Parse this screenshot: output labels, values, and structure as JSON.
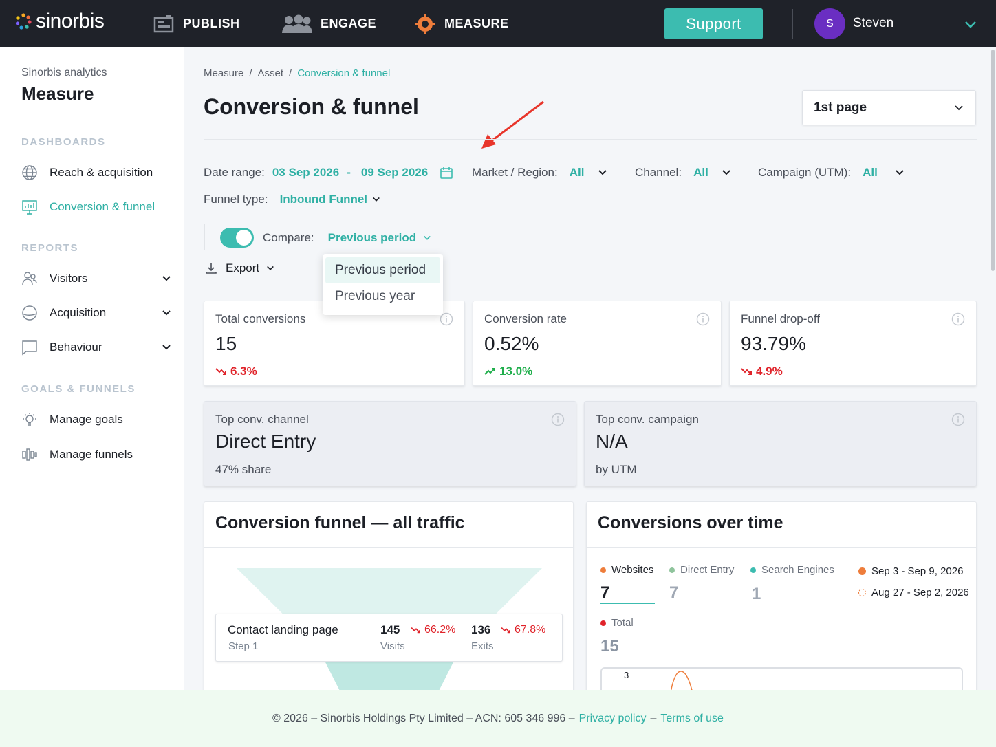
{
  "brand": {
    "name": "sinorbis"
  },
  "topnav": {
    "items": [
      {
        "label": "PUBLISH",
        "icon": "publish-icon"
      },
      {
        "label": "ENGAGE",
        "icon": "engage-icon"
      },
      {
        "label": "MEASURE",
        "icon": "measure-icon"
      }
    ],
    "support_label": "Support",
    "user": {
      "initial": "S",
      "name": "Steven"
    }
  },
  "sidebar": {
    "subtitle": "Sinorbis analytics",
    "title": "Measure",
    "sections": [
      {
        "label": "DASHBOARDS"
      },
      {
        "label": "REPORTS"
      },
      {
        "label": "GOALS & FUNNELS"
      }
    ],
    "items": [
      {
        "label": "Reach & acquisition",
        "icon": "globe-icon"
      },
      {
        "label": "Conversion & funnel",
        "icon": "presentation-icon",
        "active": true
      },
      {
        "label": "Visitors",
        "icon": "users-icon"
      },
      {
        "label": "Acquisition",
        "icon": "acquisition-icon"
      },
      {
        "label": "Behaviour",
        "icon": "chat-icon"
      },
      {
        "label": "Manage goals",
        "icon": "lightbulb-icon"
      },
      {
        "label": "Manage funnels",
        "icon": "funnels-icon"
      }
    ]
  },
  "breadcrumb": [
    "Measure",
    "/",
    "Asset",
    "/",
    "Conversion & funnel"
  ],
  "page": {
    "title": "Conversion & funnel",
    "page_select": "1st page"
  },
  "filters": {
    "date_label": "Date range:",
    "date_from": "03 Sep 2026",
    "date_sep": "-",
    "date_to": "09 Sep 2026",
    "market_label": "Market / Region:",
    "market_value": "All",
    "channel_label": "Channel:",
    "channel_value": "All",
    "campaign_label": "Campaign (UTM):",
    "campaign_value": "All",
    "funnel_label": "Funnel type:",
    "funnel_value": "Inbound Funnel",
    "compare_label": "Compare:",
    "compare_value": "Previous period",
    "compare_enabled": true,
    "compare_options": [
      "Previous period",
      "Previous year"
    ],
    "export_label": "Export"
  },
  "kpis": [
    {
      "label": "Total conversions",
      "value": "15",
      "delta": "6.3%",
      "trend": "down"
    },
    {
      "label": "Conversion rate",
      "value": "0.52%",
      "delta": "13.0%",
      "trend": "up"
    },
    {
      "label": "Funnel drop-off",
      "value": "93.79%",
      "delta": "4.9%",
      "trend": "down"
    }
  ],
  "highlights": [
    {
      "label": "Top conv. channel",
      "value": "Direct Entry",
      "sub": "47% share"
    },
    {
      "label": "Top conv. campaign",
      "value": "N/A",
      "sub": "by UTM"
    }
  ],
  "funnel_panel": {
    "title": "Conversion funnel — all traffic",
    "step": {
      "name": "Contact landing page",
      "step_label": "Step 1",
      "visits": "145",
      "visits_label": "Visits",
      "visits_delta": "66.2%",
      "exits": "136",
      "exits_label": "Exits",
      "exits_delta": "67.8%"
    }
  },
  "time_panel": {
    "title": "Conversions over time",
    "series": [
      {
        "name": "Websites",
        "value": "7",
        "color": "#ee7d3b"
      },
      {
        "name": "Direct Entry",
        "value": "7",
        "color": "#8fc49c"
      },
      {
        "name": "Search Engines",
        "value": "1",
        "color": "#3cbcb0"
      },
      {
        "name": "Total",
        "value": "15",
        "color": "#e0232a"
      }
    ],
    "periods": [
      {
        "label": "Sep 3 - Sep 9, 2026",
        "style": "solid"
      },
      {
        "label": "Aug 27 - Sep 2, 2026",
        "style": "dashed"
      }
    ],
    "y_tick": "3"
  },
  "footer": {
    "text": "© 2026 – Sinorbis Holdings Pty Limited – ACN: 605 346 996 –",
    "privacy": "Privacy policy",
    "sep": "–",
    "terms": "Terms of use"
  },
  "colors": {
    "accent": "#3cbcb0",
    "nav_bg": "#1f2229",
    "down": "#e0232a",
    "up": "#1fae4b"
  }
}
